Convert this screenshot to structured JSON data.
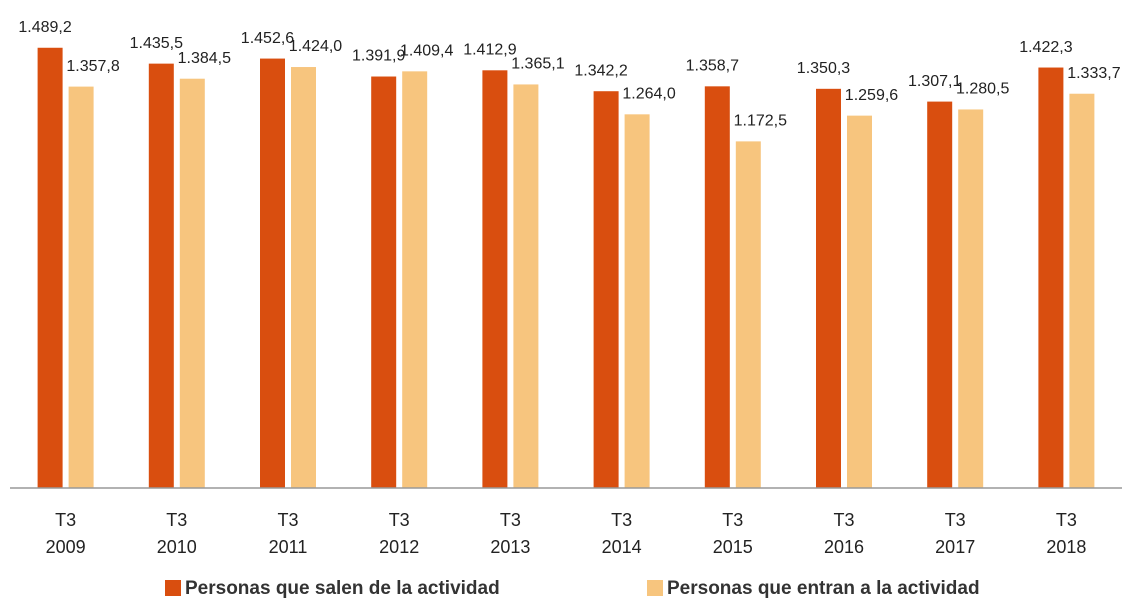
{
  "chart_data": {
    "type": "bar",
    "categories": [
      "T3 2009",
      "T3 2010",
      "T3 2011",
      "T3 2012",
      "T3 2013",
      "T3 2014",
      "T3 2015",
      "T3 2016",
      "T3 2017",
      "T3 2018"
    ],
    "series": [
      {
        "name": "Personas que salen de la actividad",
        "color": "#d94e0f",
        "values": [
          1489.2,
          1435.5,
          1452.6,
          1391.9,
          1412.9,
          1342.2,
          1358.7,
          1350.3,
          1307.1,
          1422.3
        ],
        "value_labels": [
          "1.489,2",
          "1.435,5",
          "1.452,6",
          "1.391,9",
          "1.412,9",
          "1.342,2",
          "1.358,7",
          "1.350,3",
          "1.307,1",
          "1.422,3"
        ]
      },
      {
        "name": "Personas que entran a la actividad",
        "color": "#f7c57e",
        "values": [
          1357.8,
          1384.5,
          1424.0,
          1409.4,
          1365.1,
          1264.0,
          1172.5,
          1259.6,
          1280.5,
          1333.7
        ],
        "value_labels": [
          "1.357,8",
          "1.384,5",
          "1.424,0",
          "1.409,4",
          "1.365,1",
          "1.264,0",
          "1.172,5",
          "1.259,6",
          "1.280,5",
          "1.333,7"
        ]
      }
    ],
    "ylim": [
      0,
      1600
    ],
    "legend": "bottom"
  }
}
